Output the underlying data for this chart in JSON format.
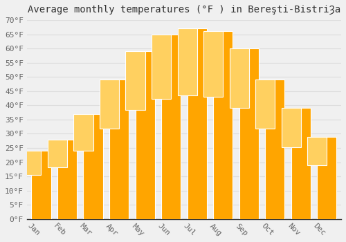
{
  "title": "Average monthly temperatures (°F ) in Bereşti-BistriȜa",
  "months": [
    "Jan",
    "Feb",
    "Mar",
    "Apr",
    "May",
    "Jun",
    "Jul",
    "Aug",
    "Sep",
    "Oct",
    "Nov",
    "Dec"
  ],
  "values": [
    24,
    28,
    37,
    49,
    59,
    65,
    67,
    66,
    60,
    49,
    39,
    29
  ],
  "bar_color": "#FFA500",
  "bar_color_top": "#FFD060",
  "background_color": "#F0F0F0",
  "grid_color": "#DDDDDD",
  "ylim": [
    0,
    70
  ],
  "ytick_step": 5,
  "title_fontsize": 10,
  "tick_fontsize": 8,
  "tick_color": "#666666",
  "xlabel_rotation": -45
}
